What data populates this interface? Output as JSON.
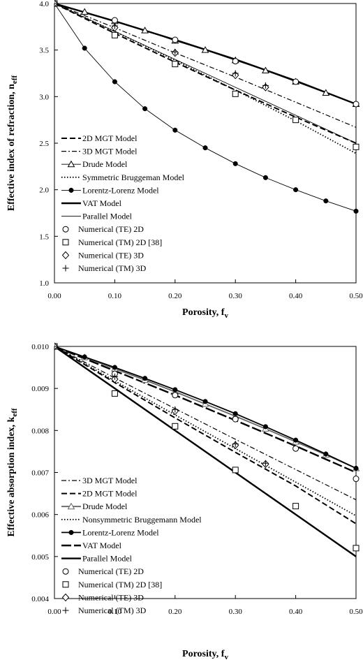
{
  "chart_data": [
    {
      "type": "line",
      "xlabel": "Porosity, f",
      "xlabel_sub": "v",
      "ylabel": "Effective index of refraction, n",
      "ylabel_sub": "eff",
      "xlim": [
        0,
        0.5
      ],
      "ylim": [
        1.0,
        4.0
      ],
      "xticks": [
        0,
        0.1,
        0.2,
        0.3,
        0.4,
        0.5
      ],
      "xtick_labels": [
        "0.00",
        "0.10",
        "0.20",
        "0.30",
        "0.40",
        "0.50"
      ],
      "yticks": [
        1.0,
        1.5,
        2.0,
        2.5,
        3.0,
        3.5,
        4.0
      ],
      "ytick_labels": [
        "1.0",
        "1.5",
        "2.0",
        "2.5",
        "3.0",
        "3.5",
        "4.0"
      ],
      "grid": false,
      "legend_position": "bottom-left",
      "series": [
        {
          "name": "2D MGT Model",
          "style": "dash",
          "x": [
            0,
            0.1,
            0.2,
            0.3,
            0.4,
            0.5
          ],
          "y": [
            4.0,
            3.68,
            3.37,
            3.07,
            2.78,
            2.5
          ]
        },
        {
          "name": "3D MGT Model",
          "style": "dashdot",
          "x": [
            0,
            0.1,
            0.2,
            0.3,
            0.4,
            0.5
          ],
          "y": [
            4.0,
            3.74,
            3.47,
            3.21,
            2.94,
            2.67
          ]
        },
        {
          "name": "Drude Model",
          "style": "solid-thin-triangle",
          "x": [
            0,
            0.05,
            0.1,
            0.15,
            0.2,
            0.25,
            0.3,
            0.35,
            0.4,
            0.45,
            0.5
          ],
          "y": [
            4.0,
            3.91,
            3.81,
            3.71,
            3.6,
            3.5,
            3.39,
            3.28,
            3.16,
            3.04,
            2.92
          ]
        },
        {
          "name": "Symmetric Bruggeman Model",
          "style": "dot",
          "x": [
            0,
            0.1,
            0.2,
            0.3,
            0.4,
            0.5
          ],
          "y": [
            4.0,
            3.7,
            3.39,
            3.07,
            2.74,
            2.39
          ]
        },
        {
          "name": "Lorentz-Lorenz Model",
          "style": "solid-thin-dot",
          "x": [
            0,
            0.05,
            0.1,
            0.15,
            0.2,
            0.25,
            0.3,
            0.35,
            0.4,
            0.45,
            0.5
          ],
          "y": [
            4.0,
            3.52,
            3.16,
            2.87,
            2.64,
            2.45,
            2.28,
            2.13,
            2.0,
            1.88,
            1.77
          ]
        },
        {
          "name": "VAT Model",
          "style": "solid-thick",
          "x": [
            0,
            0.1,
            0.2,
            0.3,
            0.4,
            0.5
          ],
          "y": [
            4.0,
            3.81,
            3.61,
            3.4,
            3.17,
            2.92
          ]
        },
        {
          "name": "Parallel Model",
          "style": "solid-thin",
          "x": [
            0,
            0.1,
            0.2,
            0.3,
            0.4,
            0.5
          ],
          "y": [
            4.0,
            3.7,
            3.4,
            3.1,
            2.8,
            2.5
          ]
        },
        {
          "name": "Numerical (TE) 2D",
          "style": "marker-circle",
          "x": [
            0,
            0.1,
            0.2,
            0.3,
            0.4,
            0.5
          ],
          "y": [
            4.0,
            3.82,
            3.61,
            3.38,
            3.16,
            2.92
          ]
        },
        {
          "name": "Numerical (TM) 2D [38]",
          "style": "marker-square",
          "x": [
            0,
            0.1,
            0.2,
            0.3,
            0.4,
            0.5
          ],
          "y": [
            4.0,
            3.66,
            3.35,
            3.03,
            2.75,
            2.46
          ]
        },
        {
          "name": "Numerical (TE) 3D",
          "style": "marker-diamond",
          "x": [
            0,
            0.1,
            0.2,
            0.3,
            0.35
          ],
          "y": [
            4.0,
            3.74,
            3.47,
            3.23,
            3.1
          ]
        },
        {
          "name": "Numerical (TM) 3D",
          "style": "marker-plus",
          "x": [
            0,
            0.1,
            0.2,
            0.3,
            0.35
          ],
          "y": [
            4.0,
            3.76,
            3.48,
            3.25,
            3.12
          ]
        }
      ]
    },
    {
      "type": "line",
      "xlabel": "Porosity, f",
      "xlabel_sub": "v",
      "ylabel": "Effective absorption index, k",
      "ylabel_sub": "eff",
      "xlim": [
        0,
        0.5
      ],
      "ylim": [
        0.004,
        0.01
      ],
      "xticks": [
        0,
        0.1,
        0.2,
        0.3,
        0.4,
        0.5
      ],
      "xtick_labels": [
        "0.00",
        "0.10",
        "0.20",
        "0.30",
        "0.40",
        "0.50"
      ],
      "yticks": [
        0.004,
        0.005,
        0.006,
        0.007,
        0.008,
        0.009,
        0.01
      ],
      "ytick_labels": [
        "0.004",
        "0.005",
        "0.006",
        "0.007",
        "0.008",
        "0.009",
        "0.010"
      ],
      "grid": false,
      "legend_position": "bottom-left",
      "series": [
        {
          "name": "3D MGT Model",
          "style": "dashdot",
          "x": [
            0,
            0.1,
            0.2,
            0.3,
            0.4,
            0.5
          ],
          "y": [
            0.01,
            0.00925,
            0.00852,
            0.00779,
            0.00707,
            0.00635
          ]
        },
        {
          "name": "2D MGT Model",
          "style": "dash",
          "x": [
            0,
            0.1,
            0.2,
            0.3,
            0.4,
            0.5
          ],
          "y": [
            0.01,
            0.00914,
            0.0083,
            0.00748,
            0.00668,
            0.00578
          ]
        },
        {
          "name": "Drude Model",
          "style": "solid-gray-triangle",
          "x": [
            0,
            0.05,
            0.1,
            0.15,
            0.2,
            0.25,
            0.3,
            0.35,
            0.4,
            0.45,
            0.5
          ],
          "y": [
            0.01,
            0.00974,
            0.00947,
            0.0092,
            0.00892,
            0.00863,
            0.00834,
            0.00804,
            0.00773,
            0.00742,
            0.0071
          ]
        },
        {
          "name": "Nonsymmetric Bruggemann Model",
          "style": "dot",
          "x": [
            0,
            0.1,
            0.2,
            0.3,
            0.4,
            0.5
          ],
          "y": [
            0.01,
            0.00918,
            0.00837,
            0.00757,
            0.00677,
            0.00597
          ]
        },
        {
          "name": "Lorentz-Lorenz Model",
          "style": "solid-black-dot",
          "x": [
            0,
            0.05,
            0.1,
            0.15,
            0.2,
            0.25,
            0.3,
            0.35,
            0.4,
            0.45,
            0.5
          ],
          "y": [
            0.01,
            0.00975,
            0.0095,
            0.00924,
            0.00897,
            0.00869,
            0.0084,
            0.00809,
            0.00777,
            0.00744,
            0.0071
          ]
        },
        {
          "name": "VAT Model",
          "style": "dash-long-thick",
          "x": [
            0,
            0.1,
            0.2,
            0.3,
            0.4,
            0.5
          ],
          "y": [
            0.01,
            0.00942,
            0.00884,
            0.00824,
            0.00763,
            0.007
          ]
        },
        {
          "name": "Parallel Model",
          "style": "solid-thick",
          "x": [
            0,
            0.1,
            0.2,
            0.3,
            0.4,
            0.5
          ],
          "y": [
            0.01,
            0.009,
            0.008,
            0.007,
            0.006,
            0.005
          ]
        },
        {
          "name": "Numerical (TE) 2D",
          "style": "marker-circle",
          "x": [
            0,
            0.1,
            0.2,
            0.3,
            0.4,
            0.5
          ],
          "y": [
            0.01,
            0.00935,
            0.00884,
            0.00827,
            0.00757,
            0.00685
          ]
        },
        {
          "name": "Numerical (TM) 2D [38]",
          "style": "marker-square",
          "x": [
            0,
            0.1,
            0.2,
            0.3,
            0.4,
            0.5
          ],
          "y": [
            0.01,
            0.00888,
            0.0081,
            0.00706,
            0.0062,
            0.0052
          ]
        },
        {
          "name": "Numerical (TE) 3D",
          "style": "marker-diamond",
          "x": [
            0,
            0.1,
            0.2,
            0.3,
            0.35
          ],
          "y": [
            0.01,
            0.00922,
            0.00846,
            0.00765,
            0.0072
          ]
        },
        {
          "name": "Numerical (TM) 3D",
          "style": "marker-plus",
          "x": [
            0,
            0.1,
            0.2,
            0.3,
            0.35
          ],
          "y": [
            0.01,
            0.00928,
            0.0085,
            0.00768,
            0.00722
          ]
        }
      ]
    }
  ]
}
